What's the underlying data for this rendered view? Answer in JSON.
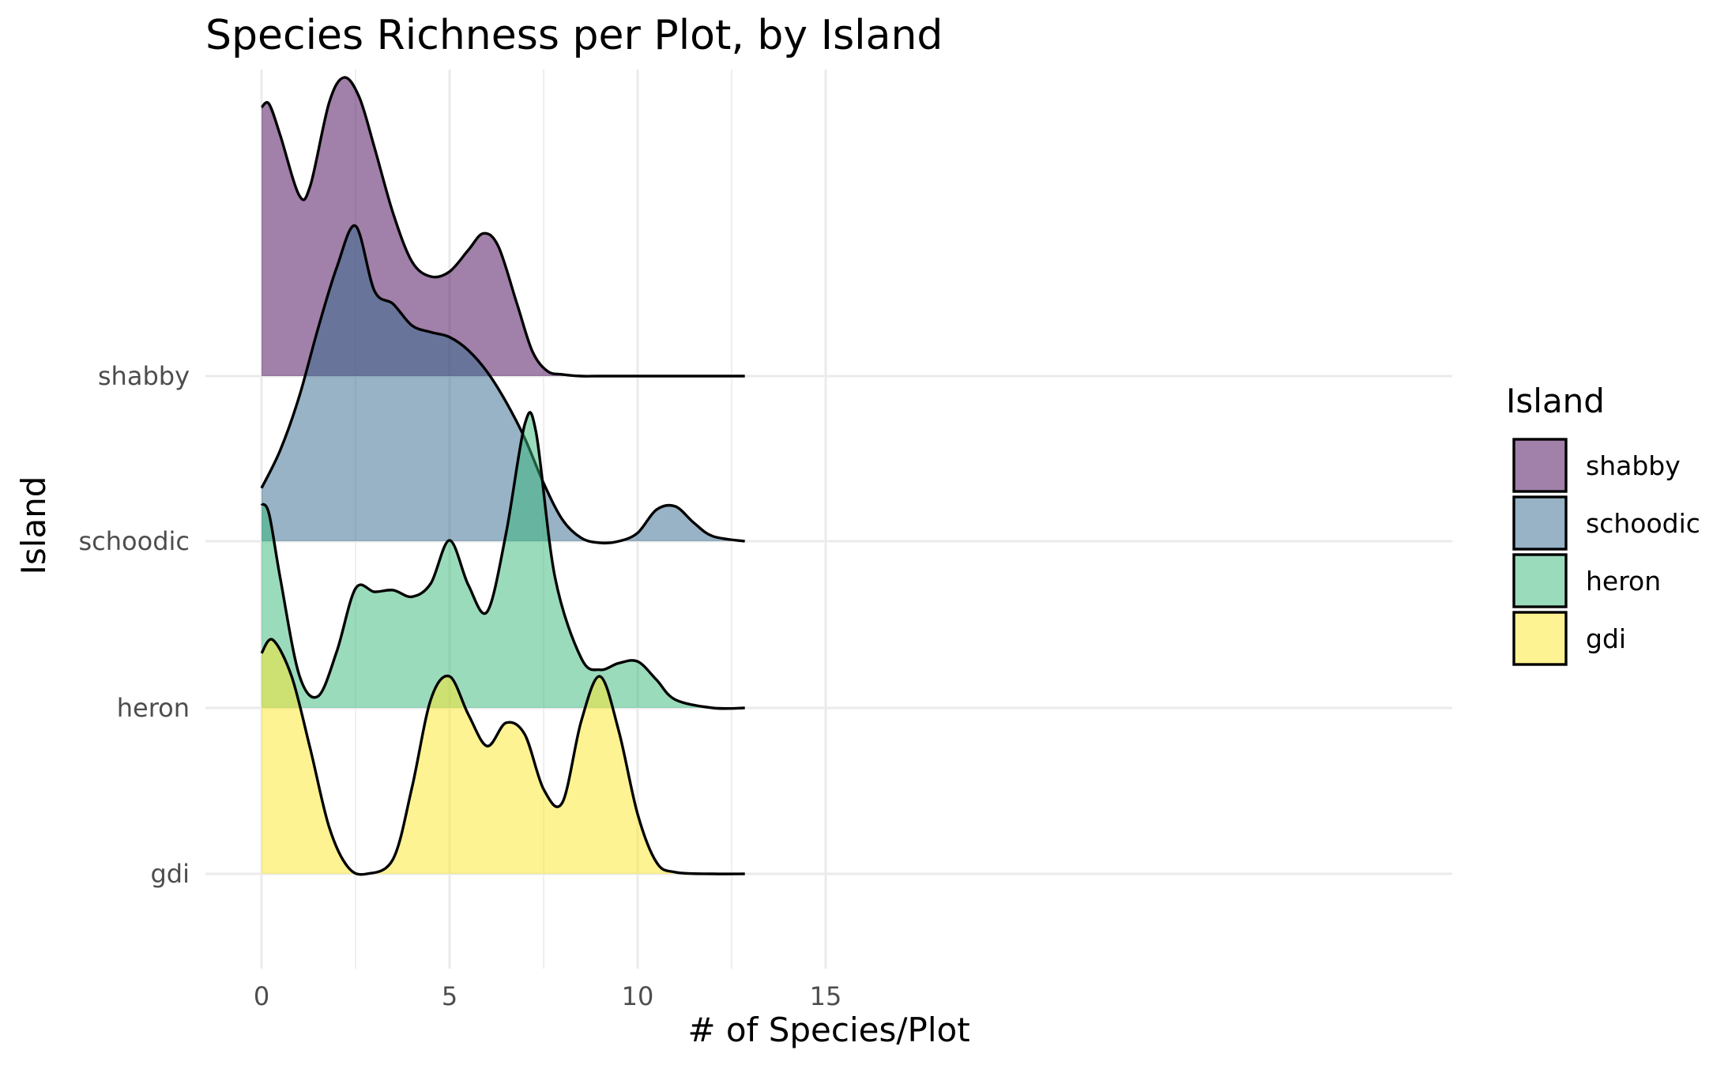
{
  "chart_data": {
    "type": "ridgeline",
    "title": "Species Richness per Plot, by Island",
    "xlabel": "# of Species/Plot",
    "ylabel": "Island",
    "xlim": [
      -0.75,
      15.75
    ],
    "x_ticks": [
      0,
      5,
      10,
      15
    ],
    "x_tick_labels": [
      "0",
      "5",
      "10",
      "15"
    ],
    "categories": [
      "gdi",
      "heron",
      "schoodic",
      "shabby"
    ],
    "grid": true,
    "legend": {
      "title": "Island",
      "placement": "right",
      "entries": [
        "shabby",
        "schoodic",
        "heron",
        "gdi"
      ]
    },
    "series": [
      {
        "name": "shabby",
        "color": "#440154",
        "density_x": [
          0,
          0.2,
          0.5,
          1.0,
          1.3,
          1.8,
          2.2,
          2.6,
          3.0,
          3.5,
          4.0,
          4.5,
          5.0,
          5.5,
          5.9,
          6.3,
          6.8,
          7.2,
          7.6,
          8.0,
          8.5,
          9.0,
          10.0,
          11.0,
          12.0,
          12.85
        ],
        "density_y": [
          1.62,
          1.64,
          1.45,
          1.09,
          1.15,
          1.65,
          1.8,
          1.68,
          1.38,
          0.98,
          0.69,
          0.6,
          0.63,
          0.76,
          0.86,
          0.78,
          0.43,
          0.15,
          0.03,
          0.01,
          0.0,
          0.0,
          0.0,
          0.0,
          0.0,
          0.0
        ]
      },
      {
        "name": "schoodic",
        "color": "#31688e",
        "density_x": [
          0,
          0.5,
          1.0,
          1.5,
          2.0,
          2.5,
          3.0,
          3.5,
          4.0,
          4.5,
          5.0,
          5.5,
          6.0,
          6.5,
          7.0,
          7.5,
          8.0,
          8.5,
          9.0,
          9.5,
          10.0,
          10.5,
          11.0,
          11.5,
          12.0,
          12.85
        ],
        "density_y": [
          0.32,
          0.55,
          0.87,
          1.28,
          1.65,
          1.9,
          1.51,
          1.43,
          1.3,
          1.26,
          1.23,
          1.15,
          1.02,
          0.84,
          0.62,
          0.35,
          0.13,
          0.02,
          -0.01,
          0.0,
          0.05,
          0.19,
          0.21,
          0.11,
          0.03,
          0.0
        ]
      },
      {
        "name": "heron",
        "color": "#35b779",
        "density_x": [
          0,
          0.2,
          0.5,
          1.0,
          1.5,
          2.0,
          2.5,
          3.0,
          3.5,
          4.0,
          4.5,
          5.0,
          5.5,
          6.0,
          6.5,
          7.0,
          7.3,
          7.8,
          8.5,
          9.0,
          9.5,
          10.0,
          10.5,
          11.0,
          12.0,
          12.85
        ],
        "density_y": [
          1.23,
          1.17,
          0.78,
          0.2,
          0.07,
          0.34,
          0.72,
          0.7,
          0.71,
          0.67,
          0.75,
          1.01,
          0.74,
          0.58,
          1.05,
          1.71,
          1.66,
          0.79,
          0.3,
          0.23,
          0.27,
          0.28,
          0.17,
          0.05,
          0.0,
          0.0
        ]
      },
      {
        "name": "gdi",
        "color": "#fde725",
        "density_x": [
          0,
          0.3,
          0.8,
          1.3,
          1.8,
          2.3,
          2.8,
          3.5,
          4.0,
          4.5,
          5.0,
          5.5,
          6.0,
          6.5,
          7.0,
          7.5,
          8.0,
          8.5,
          9.0,
          9.5,
          10.0,
          10.5,
          11.0,
          12.0,
          12.85
        ],
        "density_y": [
          1.33,
          1.41,
          1.19,
          0.75,
          0.28,
          0.04,
          0.0,
          0.09,
          0.52,
          1.05,
          1.19,
          0.96,
          0.77,
          0.91,
          0.84,
          0.51,
          0.43,
          0.92,
          1.19,
          0.86,
          0.36,
          0.07,
          0.01,
          0.0,
          0.0
        ]
      }
    ]
  }
}
